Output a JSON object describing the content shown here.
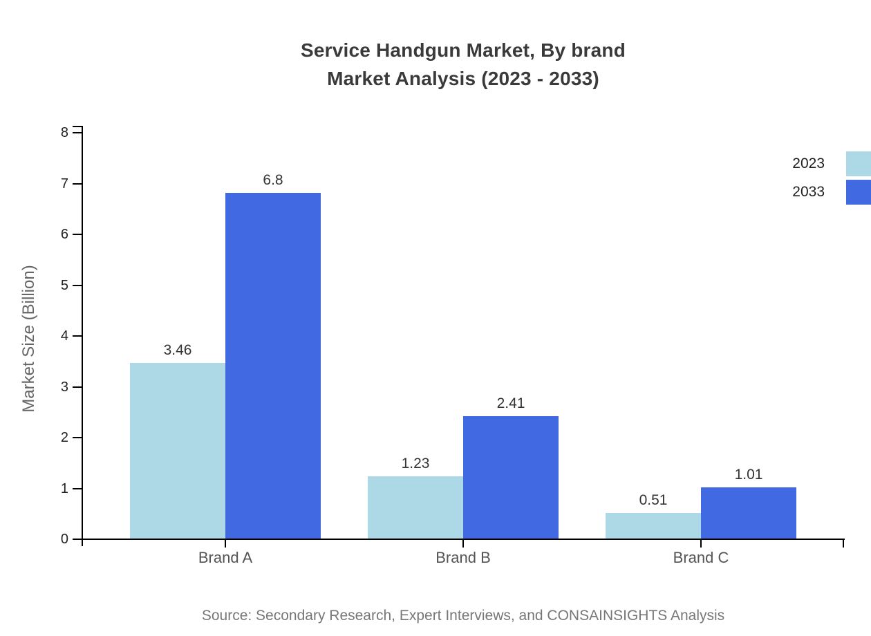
{
  "title": {
    "line1": "Service Handgun Market, By brand",
    "line2": "Market Analysis (2023 - 2033)"
  },
  "source": "Source: Secondary Research, Expert Interviews, and CONSAINSIGHTS Analysis",
  "chart_data": {
    "type": "bar",
    "title": "Service Handgun Market, By brand Market Analysis (2023 - 2033)",
    "categories": [
      "Brand A",
      "Brand B",
      "Brand C"
    ],
    "series": [
      {
        "name": "2023",
        "color": "#ADD8E6",
        "values": [
          3.46,
          1.23,
          0.51
        ],
        "labels": [
          "3.46",
          "1.23",
          "0.51"
        ]
      },
      {
        "name": "2033",
        "color": "#4169E1",
        "values": [
          6.8,
          2.41,
          1.01
        ],
        "labels": [
          "6.8",
          "2.41",
          "1.01"
        ]
      }
    ],
    "xlabel": "",
    "ylabel": "Market Size (Billion)",
    "ylim": [
      0,
      8
    ],
    "yticks": [
      0,
      1,
      2,
      3,
      4,
      5,
      6,
      7,
      8
    ],
    "grid": false,
    "legend_position": "top-right",
    "axis_color": "#000000",
    "background_color": "#ffffff"
  }
}
